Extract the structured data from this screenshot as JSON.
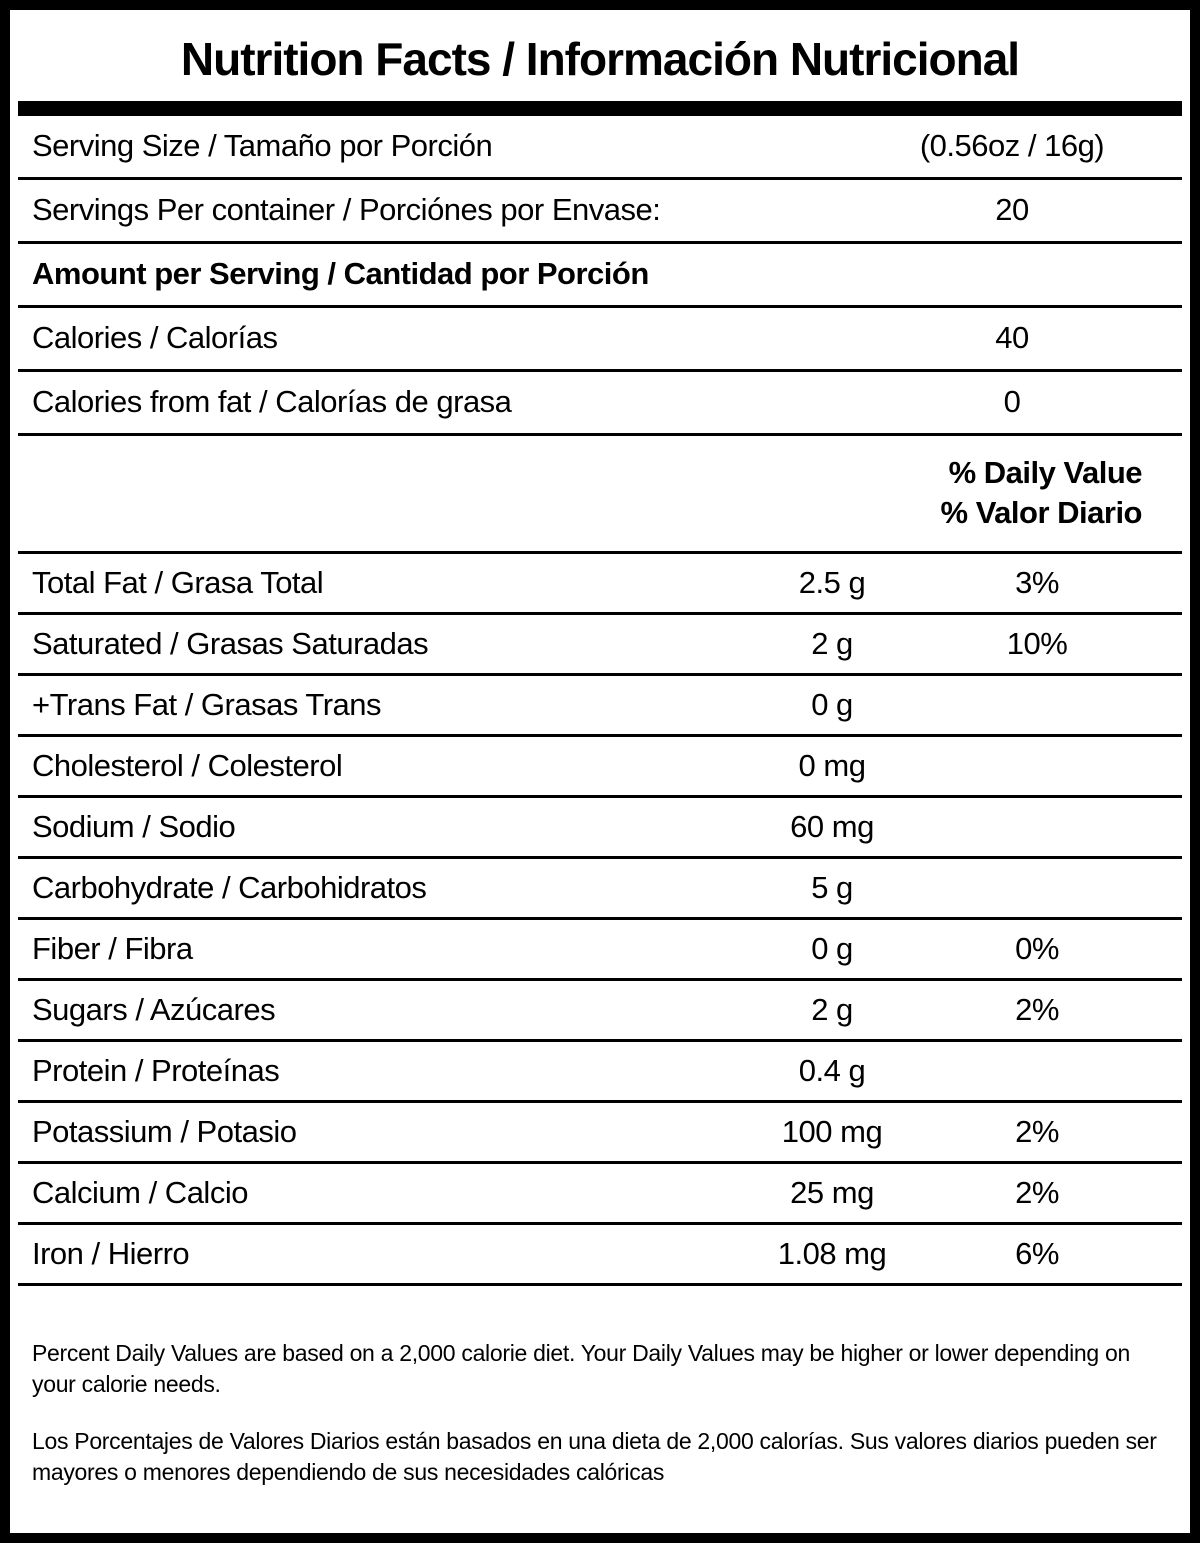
{
  "label": {
    "title": "Nutrition Facts / Información Nutricional",
    "rows": {
      "serving_size": {
        "label": "Serving Size / Tamaño por Porción",
        "value": "(0.56oz / 16g)"
      },
      "servings_per_container": {
        "label": "Servings Per container / Porciónes por Envase:",
        "value": "20"
      },
      "amount_per_serving": {
        "label": "Amount per Serving / Cantidad por Porción"
      },
      "calories": {
        "label": "Calories / Calorías",
        "value": "40"
      },
      "calories_from_fat": {
        "label": "Calories from fat / Calorías de grasa",
        "value": "0"
      }
    },
    "daily_value_header": {
      "line1": "% Daily Value",
      "line2": "% Valor Diario"
    },
    "nutrients": [
      {
        "label": "Total Fat / Grasa Total",
        "amount": "2.5 g",
        "dv": "3%"
      },
      {
        "label": "Saturated / Grasas Saturadas",
        "amount": "2 g",
        "dv": "10%"
      },
      {
        "label": "+Trans Fat / Grasas Trans",
        "amount": "0 g",
        "dv": ""
      },
      {
        "label": "Cholesterol / Colesterol",
        "amount": "0 mg",
        "dv": ""
      },
      {
        "label": "Sodium / Sodio",
        "amount": "60 mg",
        "dv": ""
      },
      {
        "label": "Carbohydrate / Carbohidratos",
        "amount": "5 g",
        "dv": ""
      },
      {
        "label": "Fiber / Fibra",
        "amount": "0 g",
        "dv": "0%"
      },
      {
        "label": "Sugars / Azúcares",
        "amount": "2 g",
        "dv": "2%"
      },
      {
        "label": "Protein / Proteínas",
        "amount": "0.4 g",
        "dv": ""
      },
      {
        "label": "Potassium / Potasio",
        "amount": "100 mg",
        "dv": "2%"
      },
      {
        "label": "Calcium / Calcio",
        "amount": "25 mg",
        "dv": "2%"
      },
      {
        "label": "Iron / Hierro",
        "amount": "1.08 mg",
        "dv": "6%"
      }
    ],
    "footnotes": {
      "en": "Percent Daily Values are based on a 2,000 calorie diet. Your Daily Values may be higher or lower depending on your calorie needs.",
      "es": "Los Porcentajes de Valores Diarios están basados en una dieta de 2,000 calorías. Sus valores diarios pueden ser mayores o menores dependiendo de sus necesidades calóricas"
    }
  }
}
